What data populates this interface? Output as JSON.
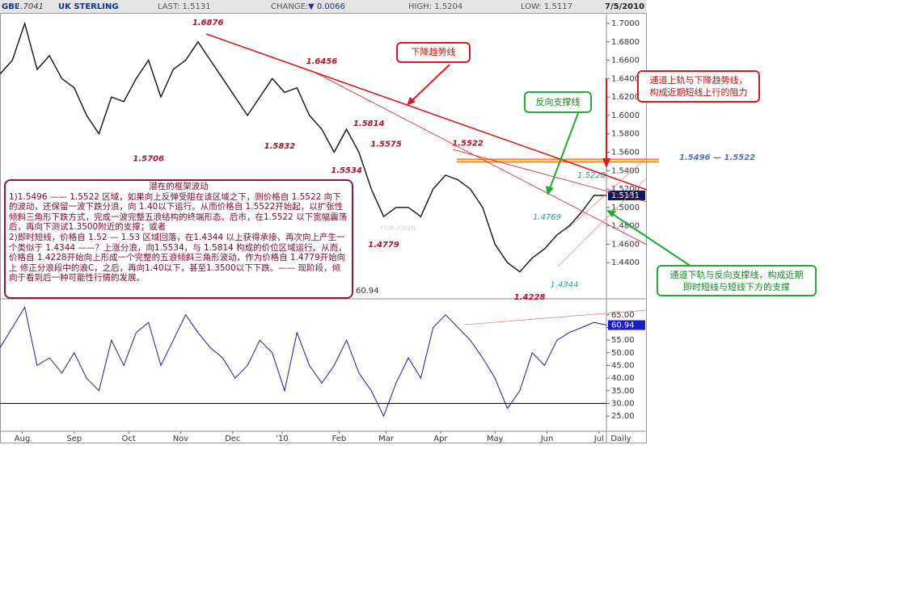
{
  "header": {
    "symbol": "GBI",
    "open": "1.7041",
    "name": "UK STERLING",
    "last": "LAST: 1.5131",
    "change_label": "CHANGE:",
    "change": "▼ 0.0066",
    "high": "HIGH: 1.5204",
    "low": "LOW: 1.5117",
    "date": "7/5/2010"
  },
  "callouts": {
    "downtrend": "下降趋势线",
    "reverse_support": "反向支撑线",
    "resistance": [
      "通道上轨与下降趋势线，",
      "构成近期短线上行的阻力"
    ],
    "support": [
      "通道下轨与反向支撑线，构成近期",
      "即时短线与短线下方的支撑"
    ],
    "zone": "1.5496 — 1.5522",
    "watermark": "rce.com"
  },
  "notes": {
    "title": "潜在的框架波动",
    "paragraphs": [
      "1)1.5496 —— 1.5522 区域，如果向上反弹受阻在该区域之下，则价格自 1.5522 向下的波动，还保留一波下跌分浪，向 1.40以下运行。从而价格自 1.5522开始起，以扩张性倾斜三角形下跌方式，完成一波完整五浪结构的终端形态。后市，在1.5522 以下宽幅震荡后，再向下测试1.3500附近的支撑；或者",
      "2)即时短线，价格自 1.52 — 1.53 区域回落，在1.4344 以上获得承接，再次向上产生一个类似于 1.4344 ——？上涨分浪，向1.5534，与 1.5814 构成的价位区域运行。从而，价格自 1.4228开始向上形成一个完整的五浪倾斜三角形波动，作为价格自 1.4779开始向上 修正分浪段中的浪C，之后，再向1.40以下，甚至1.3500以下下跌。—— 现阶段，倾向于看到后一种可能性行情的发展。"
    ]
  },
  "chart_data": [
    {
      "type": "line",
      "color": "#111111",
      "last_label": "1.5131",
      "x": [
        0,
        5,
        10,
        15,
        20,
        25,
        30,
        35,
        40,
        45,
        50,
        55,
        60,
        65,
        70,
        75,
        80,
        85,
        90,
        95,
        100,
        105,
        110,
        115,
        120,
        125,
        130,
        135,
        140,
        145,
        150,
        155,
        160,
        165,
        170,
        175,
        180,
        185,
        190,
        195,
        200,
        205,
        210,
        215,
        220,
        225,
        230,
        235,
        240,
        245
      ],
      "values": [
        1.645,
        1.66,
        1.7,
        1.65,
        1.665,
        1.64,
        1.63,
        1.6,
        1.58,
        1.62,
        1.615,
        1.64,
        1.66,
        1.62,
        1.65,
        1.66,
        1.68,
        1.66,
        1.64,
        1.62,
        1.6,
        1.62,
        1.64,
        1.625,
        1.63,
        1.6,
        1.585,
        1.56,
        1.585,
        1.56,
        1.52,
        1.49,
        1.5,
        1.5,
        1.49,
        1.52,
        1.535,
        1.53,
        1.52,
        1.5,
        1.46,
        1.44,
        1.43,
        1.445,
        1.455,
        1.47,
        1.48,
        1.495,
        1.513,
        1.513
      ],
      "xlim": [
        0,
        245
      ],
      "ylim": [
        1.4024,
        1.7114
      ],
      "yticks": [
        {
          "value": 1.7,
          "label": "1.7000"
        },
        {
          "value": 1.68,
          "label": "1.6800"
        },
        {
          "value": 1.66,
          "label": "1.6600"
        },
        {
          "value": 1.64,
          "label": "1.6400"
        },
        {
          "value": 1.62,
          "label": "1.6200"
        },
        {
          "value": 1.6,
          "label": "1.6000"
        },
        {
          "value": 1.58,
          "label": "1.5800"
        },
        {
          "value": 1.56,
          "label": "1.5600"
        },
        {
          "value": 1.54,
          "label": "1.5400"
        },
        {
          "value": 1.52,
          "label": "1.5200"
        },
        {
          "value": 1.5,
          "label": "1.5000"
        },
        {
          "value": 1.48,
          "label": "1.4800"
        },
        {
          "value": 1.46,
          "label": "1.4600"
        },
        {
          "value": 1.44,
          "label": "1.4400"
        }
      ],
      "levels": [
        1.5522,
        1.5496
      ],
      "annotations": [
        {
          "x": 84,
          "value": 1.6876,
          "label": "1.6876"
        },
        {
          "x": 130,
          "value": 1.6456,
          "label": "1.6456"
        },
        {
          "x": 149,
          "value": 1.5814,
          "label": "1.5814"
        },
        {
          "x": 156,
          "value": 1.5575,
          "label": "1.5575"
        },
        {
          "x": 189,
          "value": 1.5522,
          "label": "1.5522"
        },
        {
          "x": 60,
          "value": 1.5706,
          "label": "1.5706"
        },
        {
          "x": 113,
          "value": 1.5832,
          "label": "1.5832"
        },
        {
          "x": 140,
          "value": 1.5534,
          "label": "1.5534"
        },
        {
          "x": 155,
          "value": 1.4779,
          "label": "1.4779"
        },
        {
          "x": 221,
          "value": 1.4769,
          "label": "1.4769"
        },
        {
          "x": 239,
          "value": 1.5228,
          "label": "1.5228"
        },
        {
          "x": 228,
          "value": 1.4344,
          "label": "1.4344"
        },
        {
          "x": 214,
          "value": 1.4228,
          "label": "1.4228"
        }
      ]
    },
    {
      "type": "line",
      "color": "#1a1aa8",
      "last_label": "60.94",
      "x": [
        0,
        5,
        10,
        15,
        20,
        25,
        30,
        35,
        40,
        45,
        50,
        55,
        60,
        65,
        70,
        75,
        80,
        85,
        90,
        95,
        100,
        105,
        110,
        115,
        120,
        125,
        130,
        135,
        140,
        145,
        150,
        155,
        160,
        165,
        170,
        175,
        180,
        185,
        190,
        195,
        200,
        205,
        210,
        215,
        220,
        225,
        230,
        235,
        240,
        245
      ],
      "values": [
        52,
        60,
        68,
        45,
        48,
        42,
        50,
        40,
        35,
        55,
        45,
        58,
        62,
        45,
        55,
        65,
        58,
        52,
        48,
        40,
        45,
        55,
        50,
        35,
        58,
        45,
        38,
        45,
        55,
        42,
        35,
        25,
        38,
        48,
        40,
        60,
        65,
        60,
        55,
        48,
        40,
        28,
        35,
        50,
        45,
        55,
        58,
        60,
        62,
        60.94
      ],
      "xlim": [
        0,
        245
      ],
      "ylim": [
        19,
        71
      ],
      "yticks": [
        {
          "value": 25,
          "label": "25.00"
        },
        {
          "value": 30,
          "label": "30.00"
        },
        {
          "value": 35,
          "label": "35.00"
        },
        {
          "value": 40,
          "label": "40.00"
        },
        {
          "value": 45,
          "label": "45.00"
        },
        {
          "value": 50,
          "label": "50.00"
        },
        {
          "value": 55,
          "label": "55.00"
        },
        {
          "value": 60,
          "label": "60.00"
        },
        {
          "value": 65,
          "label": "65.00"
        }
      ],
      "levels": [
        30
      ],
      "xticks": [
        {
          "value": 9,
          "label": "Aug"
        },
        {
          "value": 30,
          "label": "Sep"
        },
        {
          "value": 52,
          "label": "Oct"
        },
        {
          "value": 73,
          "label": "Nov"
        },
        {
          "value": 94,
          "label": "Dec"
        },
        {
          "value": 114,
          "label": "'10"
        },
        {
          "value": 137,
          "label": "Feb"
        },
        {
          "value": 156,
          "label": "Mar"
        },
        {
          "value": 178,
          "label": "Apr"
        },
        {
          "value": 200,
          "label": "May"
        },
        {
          "value": 221,
          "label": "Jun"
        },
        {
          "value": 242,
          "label": "Jul"
        }
      ],
      "frequency": "Daily"
    }
  ]
}
